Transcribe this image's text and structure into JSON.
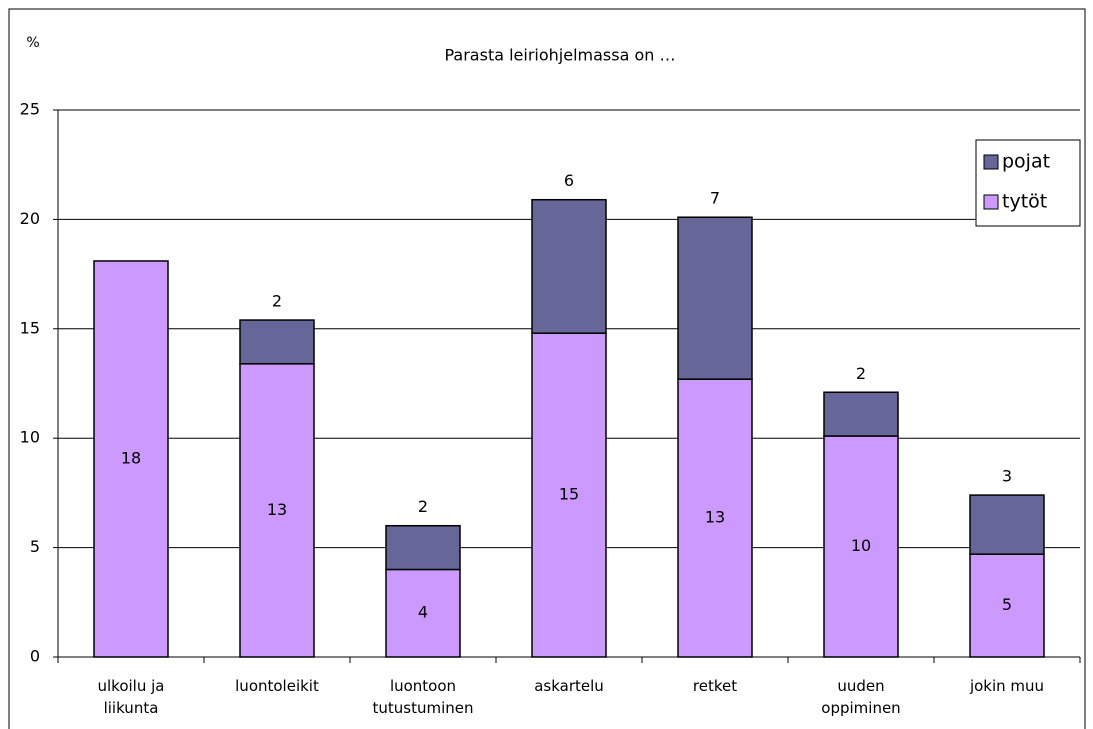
{
  "chart_data": {
    "type": "stacked_bar",
    "title": "Parasta leiriohjelmassa on …",
    "y_label": "%",
    "categories": [
      "ulkoilu ja liikunta",
      "luontoleikit",
      "luontoon tutustuminen",
      "askartelu",
      "retket",
      "uuden oppiminen",
      "jokin muu"
    ],
    "series": [
      {
        "name": "tytöt",
        "color": "#cc99ff",
        "values": [
          18.1,
          13.4,
          4.0,
          14.8,
          12.7,
          10.1,
          4.7
        ],
        "value_labels": [
          "18",
          "13",
          "4",
          "15",
          "13",
          "10",
          "5"
        ]
      },
      {
        "name": "pojat",
        "color": "#666699",
        "values": [
          null,
          2.0,
          2.0,
          6.1,
          7.4,
          2.0,
          2.7
        ],
        "value_labels": [
          null,
          "2",
          "2",
          "6",
          "7",
          "2",
          "3"
        ]
      }
    ],
    "ylim": [
      0,
      25
    ],
    "yticks": [
      0,
      5,
      10,
      15,
      20,
      25
    ],
    "grid": true,
    "legend": "upper right"
  }
}
